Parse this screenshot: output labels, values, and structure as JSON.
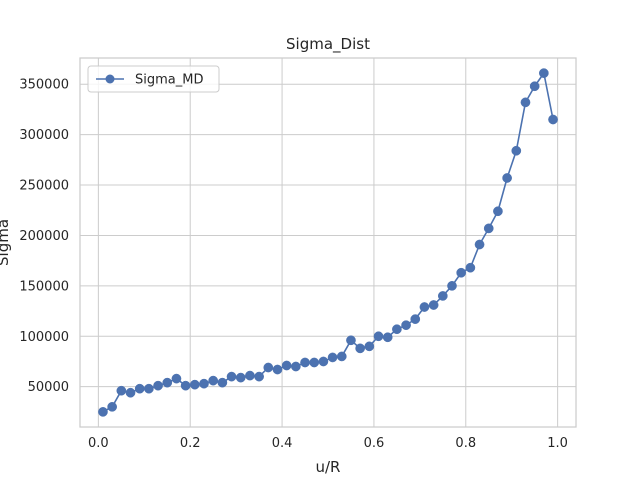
{
  "chart_data": {
    "type": "line",
    "title": "Sigma_Dist",
    "xlabel": "u/R",
    "ylabel": "Sigma",
    "xlim": [
      -0.04,
      1.04
    ],
    "ylim": [
      10000,
      376000
    ],
    "xticks": [
      0.0,
      0.2,
      0.4,
      0.6,
      0.8,
      1.0
    ],
    "xtick_labels": [
      "0.0",
      "0.2",
      "0.4",
      "0.6",
      "0.8",
      "1.0"
    ],
    "yticks": [
      50000,
      100000,
      150000,
      200000,
      250000,
      300000,
      350000
    ],
    "ytick_labels": [
      "50000",
      "100000",
      "150000",
      "200000",
      "250000",
      "300000",
      "350000"
    ],
    "grid": true,
    "legend_position": "upper-left",
    "series": [
      {
        "name": "Sigma_MD",
        "color": "#4c72b0",
        "marker": "circle",
        "x": [
          0.01,
          0.03,
          0.05,
          0.07,
          0.09,
          0.11,
          0.13,
          0.15,
          0.17,
          0.19,
          0.21,
          0.23,
          0.25,
          0.27,
          0.29,
          0.31,
          0.33,
          0.35,
          0.37,
          0.39,
          0.41,
          0.43,
          0.45,
          0.47,
          0.49,
          0.51,
          0.53,
          0.55,
          0.57,
          0.59,
          0.61,
          0.63,
          0.65,
          0.67,
          0.69,
          0.71,
          0.73,
          0.75,
          0.77,
          0.79,
          0.81,
          0.83,
          0.85,
          0.87,
          0.89,
          0.91,
          0.93,
          0.95,
          0.97,
          0.99
        ],
        "y": [
          25000,
          30000,
          46000,
          44000,
          48000,
          48000,
          51000,
          54000,
          58000,
          51000,
          52000,
          53000,
          56000,
          54000,
          60000,
          59000,
          61000,
          60000,
          69000,
          67000,
          71000,
          70000,
          74000,
          74000,
          75000,
          79000,
          80000,
          96000,
          88000,
          90000,
          100000,
          99000,
          107000,
          111000,
          117000,
          129000,
          131000,
          140000,
          150000,
          163000,
          168000,
          191000,
          207000,
          224000,
          257000,
          284000,
          332000,
          348000,
          361000,
          315000
        ]
      }
    ]
  }
}
